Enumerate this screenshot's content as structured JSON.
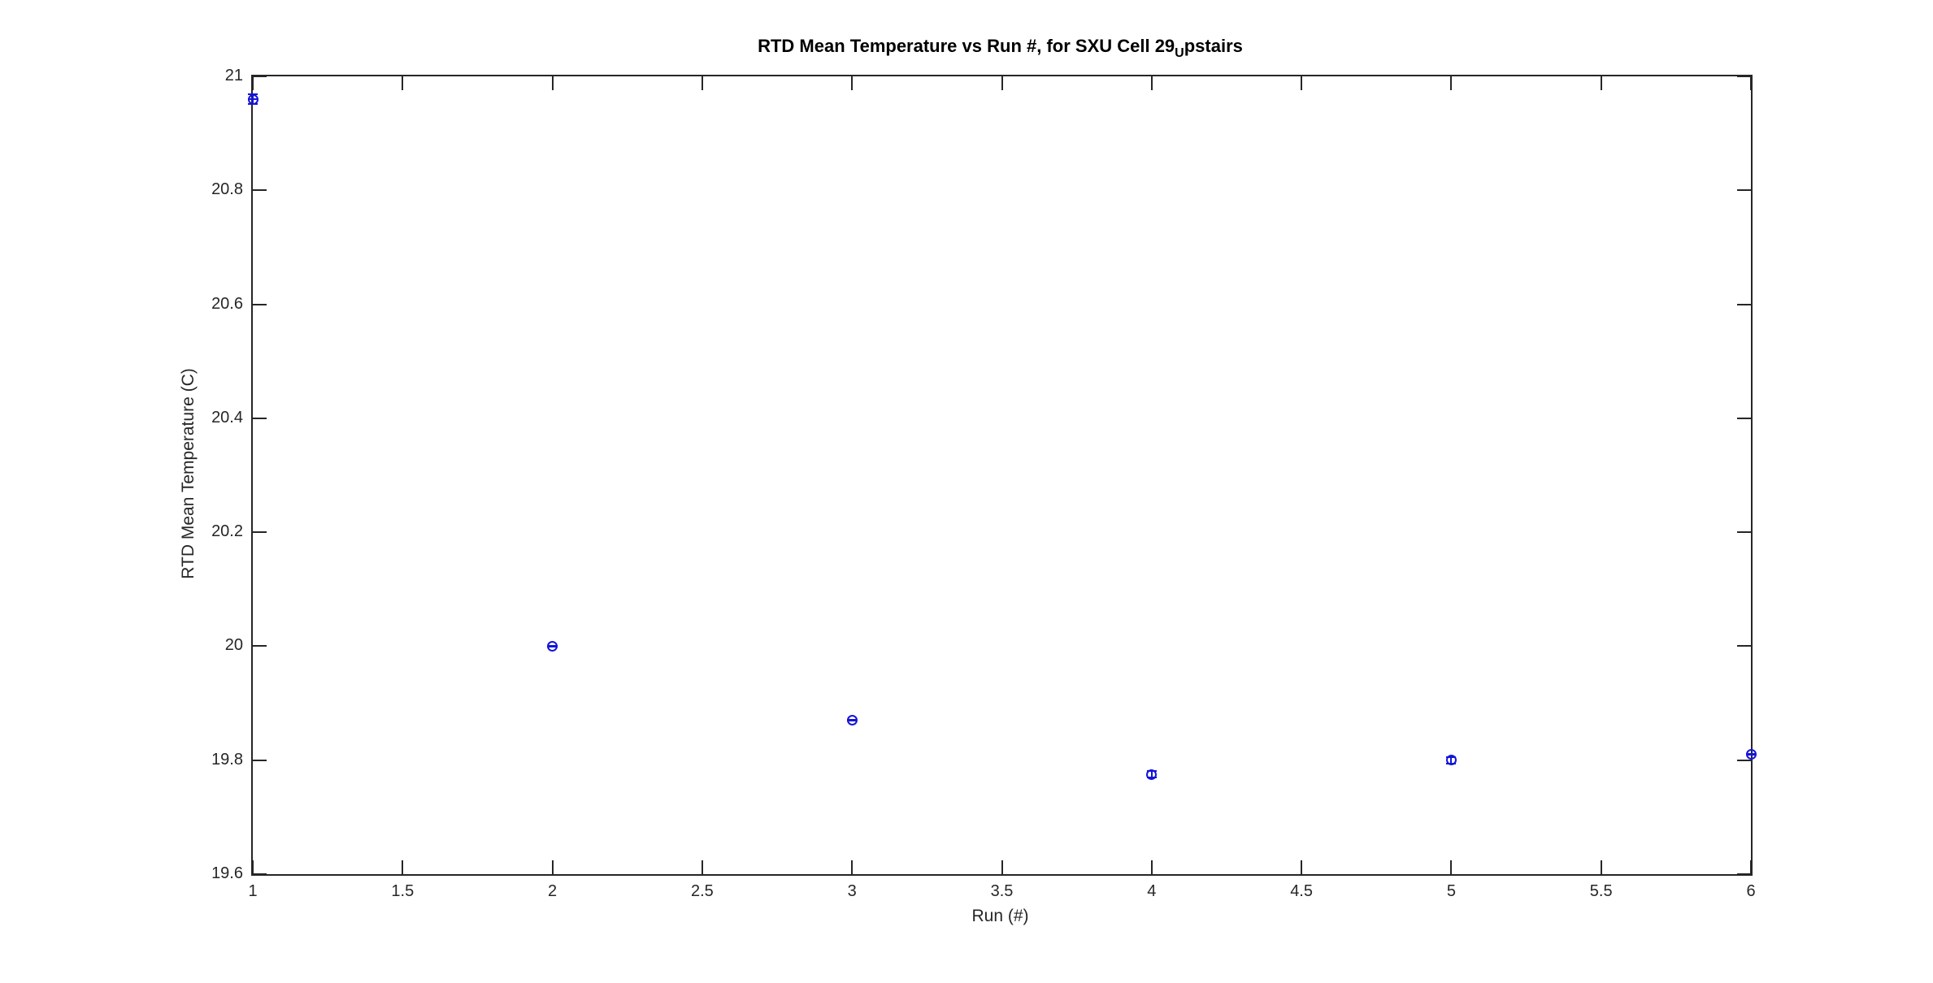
{
  "figure": {
    "background": "#ffffff",
    "axis_color": "#262626",
    "title_color": "#000000"
  },
  "chart_data": {
    "type": "scatter",
    "subtype": "errorbar",
    "title_plain": "RTD Mean Temperature vs Run #, for SXU Cell 29_Upstairs",
    "title_prefix": "RTD Mean Temperature vs Run #, for SXU Cell 29",
    "title_sub": "U",
    "title_suffix": "pstairs",
    "xlabel": "Run (#)",
    "ylabel": "RTD Mean Temperature (C)",
    "xlim": [
      1,
      6
    ],
    "ylim": [
      19.6,
      21
    ],
    "xtick_values": [
      1,
      1.5,
      2,
      2.5,
      3,
      3.5,
      4,
      4.5,
      5,
      5.5,
      6
    ],
    "xtick_labels": [
      "1",
      "1.5",
      "2",
      "2.5",
      "3",
      "3.5",
      "4",
      "4.5",
      "5",
      "5.5",
      "6"
    ],
    "ytick_values": [
      19.6,
      19.8,
      20,
      20.2,
      20.4,
      20.6,
      20.8,
      21
    ],
    "ytick_labels": [
      "19.6",
      "19.8",
      "20",
      "20.2",
      "20.4",
      "20.6",
      "20.8",
      "21"
    ],
    "grid": false,
    "legend": null,
    "series": [
      {
        "name": "RTD mean temperature",
        "x": [
          1,
          2,
          3,
          4,
          5,
          6
        ],
        "y": [
          20.96,
          20.0,
          19.87,
          19.775,
          19.8,
          19.81
        ],
        "yerr": [
          0.009,
          0.001,
          0.001,
          0.006,
          0.006,
          0.001
        ],
        "xerr": [
          0.016,
          0.016,
          0.016,
          0,
          0,
          0.016
        ],
        "marker": "open-circle",
        "marker_color": "#1414DC",
        "marker_size_px": 13
      }
    ]
  }
}
